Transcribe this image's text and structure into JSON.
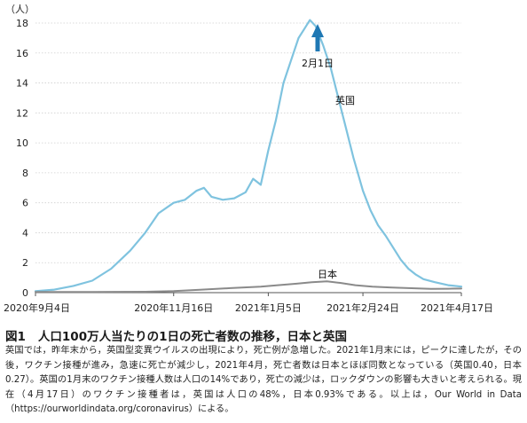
{
  "chart_data": {
    "type": "line",
    "unit_label": "（人）",
    "ylim": [
      0,
      18
    ],
    "y_ticks": [
      0,
      2,
      4,
      6,
      8,
      10,
      12,
      14,
      16,
      18
    ],
    "x_tick_labels": [
      "2020年9月4日",
      "2020年11月16日",
      "2021年1月5日",
      "2021年2月24日",
      "2021年4月17日"
    ],
    "x_tick_dates": [
      "2020-09-04",
      "2020-11-16",
      "2021-01-05",
      "2021-02-24",
      "2021-04-17"
    ],
    "grid": true,
    "annotation": {
      "label": "2月1日",
      "date": "2021-02-01"
    },
    "series": [
      {
        "name": "英国",
        "color": "#7fc3df",
        "points": [
          [
            "2020-09-04",
            0.1
          ],
          [
            "2020-09-14",
            0.2
          ],
          [
            "2020-09-24",
            0.45
          ],
          [
            "2020-10-04",
            0.8
          ],
          [
            "2020-10-14",
            1.6
          ],
          [
            "2020-10-24",
            2.8
          ],
          [
            "2020-11-01",
            4.0
          ],
          [
            "2020-11-08",
            5.3
          ],
          [
            "2020-11-16",
            6.0
          ],
          [
            "2020-11-22",
            6.2
          ],
          [
            "2020-11-28",
            6.8
          ],
          [
            "2020-12-02",
            7.0
          ],
          [
            "2020-12-06",
            6.4
          ],
          [
            "2020-12-12",
            6.2
          ],
          [
            "2020-12-18",
            6.3
          ],
          [
            "2020-12-24",
            6.7
          ],
          [
            "2020-12-28",
            7.6
          ],
          [
            "2021-01-01",
            7.2
          ],
          [
            "2021-01-05",
            9.5
          ],
          [
            "2021-01-09",
            11.5
          ],
          [
            "2021-01-13",
            14.0
          ],
          [
            "2021-01-17",
            15.5
          ],
          [
            "2021-01-21",
            17.0
          ],
          [
            "2021-01-24",
            17.6
          ],
          [
            "2021-01-27",
            18.2
          ],
          [
            "2021-01-30",
            17.8
          ],
          [
            "2021-02-03",
            16.5
          ],
          [
            "2021-02-07",
            15.0
          ],
          [
            "2021-02-11",
            13.0
          ],
          [
            "2021-02-15",
            11.0
          ],
          [
            "2021-02-19",
            9.0
          ],
          [
            "2021-02-24",
            6.8
          ],
          [
            "2021-02-28",
            5.5
          ],
          [
            "2021-03-04",
            4.5
          ],
          [
            "2021-03-08",
            3.8
          ],
          [
            "2021-03-12",
            3.0
          ],
          [
            "2021-03-16",
            2.2
          ],
          [
            "2021-03-20",
            1.6
          ],
          [
            "2021-03-24",
            1.2
          ],
          [
            "2021-03-28",
            0.9
          ],
          [
            "2021-04-03",
            0.7
          ],
          [
            "2021-04-10",
            0.5
          ],
          [
            "2021-04-17",
            0.4
          ]
        ]
      },
      {
        "name": "日本",
        "color": "#8a8a8a",
        "points": [
          [
            "2020-09-04",
            0.05
          ],
          [
            "2020-10-04",
            0.05
          ],
          [
            "2020-11-01",
            0.06
          ],
          [
            "2020-11-16",
            0.1
          ],
          [
            "2020-12-01",
            0.2
          ],
          [
            "2020-12-16",
            0.3
          ],
          [
            "2021-01-01",
            0.4
          ],
          [
            "2021-01-10",
            0.5
          ],
          [
            "2021-01-20",
            0.6
          ],
          [
            "2021-01-28",
            0.7
          ],
          [
            "2021-02-05",
            0.75
          ],
          [
            "2021-02-12",
            0.65
          ],
          [
            "2021-02-20",
            0.5
          ],
          [
            "2021-03-01",
            0.4
          ],
          [
            "2021-03-10",
            0.35
          ],
          [
            "2021-03-20",
            0.3
          ],
          [
            "2021-04-01",
            0.25
          ],
          [
            "2021-04-10",
            0.26
          ],
          [
            "2021-04-17",
            0.27
          ]
        ]
      }
    ]
  },
  "figure": {
    "number": "図1",
    "title": "人口100万人当たりの1日の死亡者数の推移，日本と英国",
    "caption": "英国では，昨年末から，英国型変異ウイルスの出現により，死亡例が急増した。2021年1月末には，ピークに達したが，その後，ワクチン接種が進み，急速に死亡が減少し，2021年4月，死亡者数は日本とほぼ同数となっている（英国0.40，日本0.27）。英国の1月末のワクチン接種人数は人口の14%であり，死亡の減少は，ロックダウンの影響も大きいと考えられる。現在（4月17日）のワクチン接種者は，英国は人口の48%，日本0.93%である。以上は，Our World in Data（https://ourworldindata.org/coronavirus）による。"
  }
}
